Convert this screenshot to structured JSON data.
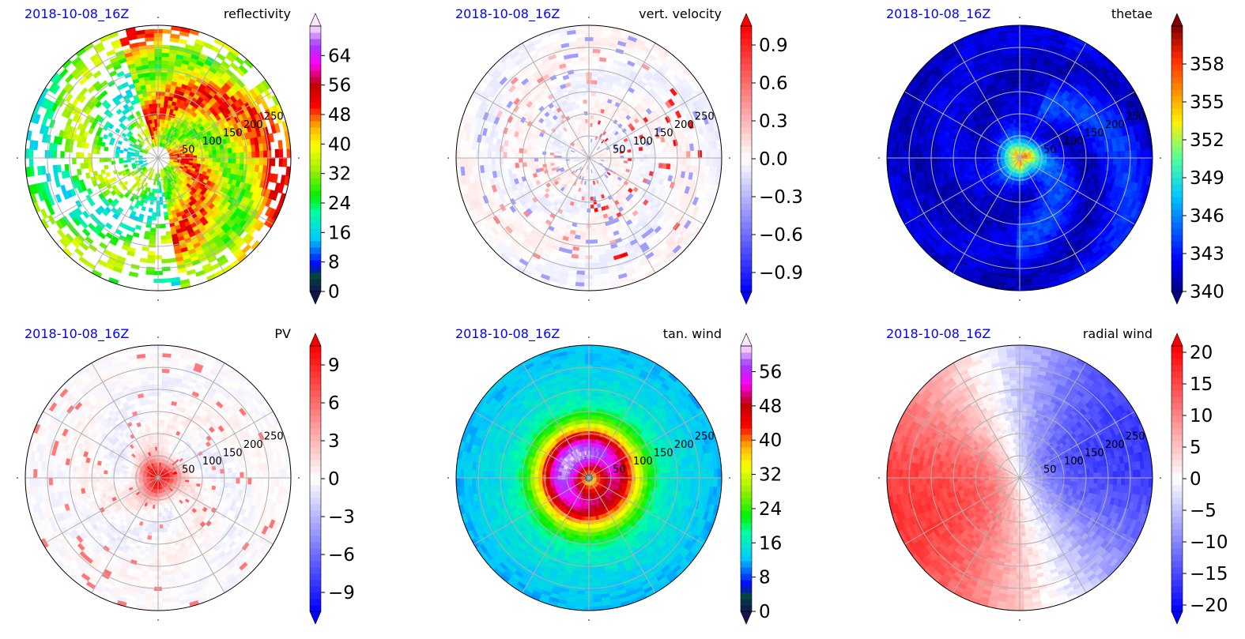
{
  "figure": {
    "panel_order": [
      "reflectivity",
      "vert_velocity",
      "thetae",
      "pv",
      "tan_wind",
      "radial_wind"
    ]
  },
  "chart_data": [
    {
      "type": "heatmap",
      "projection": "polar",
      "date_label": "2018-10-08_16Z",
      "title": "reflectivity",
      "field": "reflectivity",
      "colormap": "nws-reflectivity",
      "colorbar": {
        "range": [
          0,
          72
        ],
        "ticks": [
          "0",
          "8",
          "16",
          "24",
          "32",
          "40",
          "48",
          "56",
          "64"
        ],
        "tick_values": [
          0,
          8,
          16,
          24,
          32,
          40,
          48,
          56,
          64
        ],
        "extend": "both"
      },
      "radial_ticks": [
        "50",
        "100",
        "150",
        "200",
        "250"
      ],
      "radial_tick_values": [
        50,
        100,
        150,
        200,
        250
      ],
      "r_max": 300,
      "grid": true,
      "angular_grid_deg": [
        0,
        30,
        60,
        90,
        120,
        150,
        180,
        210,
        240,
        270,
        300,
        330
      ]
    },
    {
      "type": "heatmap",
      "projection": "polar",
      "date_label": "2018-10-08_16Z",
      "title": "vert. velocity",
      "field": "vert_velocity",
      "colormap": "bwr",
      "colorbar": {
        "range": [
          -1.05,
          1.05
        ],
        "ticks": [
          "−0.9",
          "−0.6",
          "−0.3",
          "0.0",
          "0.3",
          "0.6",
          "0.9"
        ],
        "tick_values": [
          -0.9,
          -0.6,
          -0.3,
          0.0,
          0.3,
          0.6,
          0.9
        ],
        "extend": "both"
      },
      "radial_ticks": [
        "50",
        "100",
        "150",
        "200",
        "250"
      ],
      "radial_tick_values": [
        50,
        100,
        150,
        200,
        250
      ],
      "r_max": 300,
      "grid": true
    },
    {
      "type": "heatmap",
      "projection": "polar",
      "date_label": "2018-10-08_16Z",
      "title": "thetae",
      "field": "thetae",
      "colormap": "jet",
      "colorbar": {
        "range": [
          340,
          361
        ],
        "ticks": [
          "340",
          "343",
          "346",
          "349",
          "352",
          "355",
          "358"
        ],
        "tick_values": [
          340,
          343,
          346,
          349,
          352,
          355,
          358
        ],
        "extend": "both"
      },
      "radial_ticks": [
        "50",
        "100",
        "150",
        "200",
        "250"
      ],
      "radial_tick_values": [
        50,
        100,
        150,
        200,
        250
      ],
      "r_max": 300,
      "grid": true
    },
    {
      "type": "heatmap",
      "projection": "polar",
      "date_label": "2018-10-08_16Z",
      "title": "PV",
      "field": "pv",
      "colormap": "bwr",
      "colorbar": {
        "range": [
          -10.5,
          10.5
        ],
        "ticks": [
          "−9",
          "−6",
          "−3",
          "0",
          "3",
          "6",
          "9"
        ],
        "tick_values": [
          -9,
          -6,
          -3,
          0,
          3,
          6,
          9
        ],
        "extend": "both"
      },
      "radial_ticks": [
        "50",
        "100",
        "150",
        "200",
        "250"
      ],
      "radial_tick_values": [
        50,
        100,
        150,
        200,
        250
      ],
      "r_max": 300,
      "grid": true
    },
    {
      "type": "heatmap",
      "projection": "polar",
      "date_label": "2018-10-08_16Z",
      "title": "tan. wind",
      "field": "tan_wind",
      "colormap": "nws-reflectivity",
      "colorbar": {
        "range": [
          0,
          62
        ],
        "ticks": [
          "0",
          "8",
          "16",
          "24",
          "32",
          "40",
          "48",
          "56"
        ],
        "tick_values": [
          0,
          8,
          16,
          24,
          32,
          40,
          48,
          56
        ],
        "extend": "both"
      },
      "radial_ticks": [
        "50",
        "100",
        "150",
        "200",
        "250"
      ],
      "radial_tick_values": [
        50,
        100,
        150,
        200,
        250
      ],
      "r_max": 300,
      "grid": true
    },
    {
      "type": "heatmap",
      "projection": "polar",
      "date_label": "2018-10-08_16Z",
      "title": "radial wind",
      "field": "radial_wind",
      "colormap": "bwr",
      "colorbar": {
        "range": [
          -21,
          21
        ],
        "ticks": [
          "−20",
          "−15",
          "−10",
          "−5",
          "0",
          "5",
          "10",
          "15",
          "20"
        ],
        "tick_values": [
          -20,
          -15,
          -10,
          -5,
          0,
          5,
          10,
          15,
          20
        ],
        "extend": "both"
      },
      "radial_ticks": [
        "50",
        "100",
        "150",
        "200",
        "250"
      ],
      "radial_tick_values": [
        50,
        100,
        150,
        200,
        250
      ],
      "r_max": 300,
      "grid": true
    }
  ],
  "colors": {
    "date_label": "#0000ff",
    "title": "#000000",
    "grid": "#b0b0b0",
    "frame": "#000000"
  }
}
